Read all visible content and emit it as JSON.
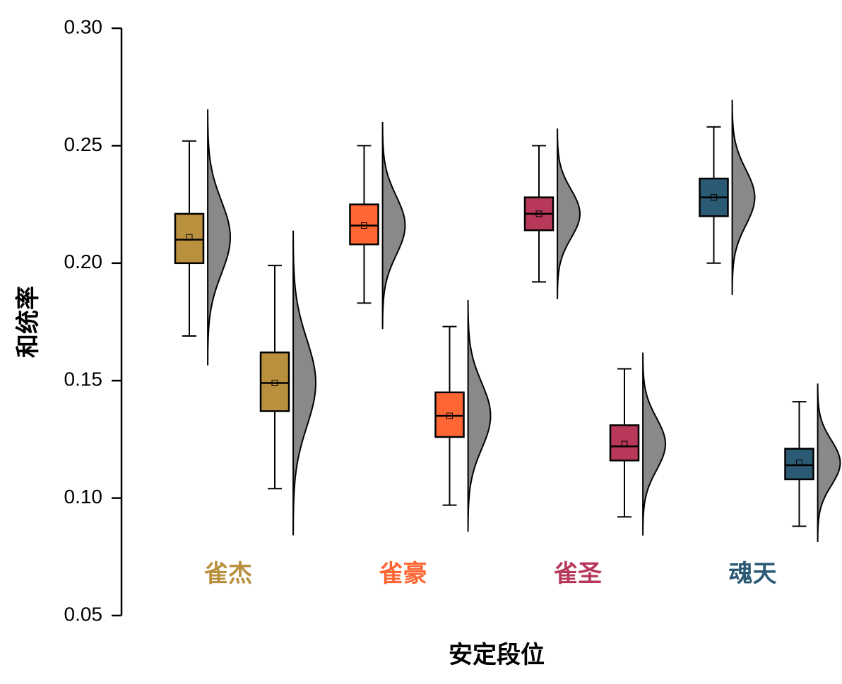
{
  "chart_data": {
    "type": "box",
    "ylabel": "和统率",
    "xlabel": "安定段位",
    "categories": [
      "雀杰",
      "雀豪",
      "雀圣",
      "魂天"
    ],
    "colors": [
      "#b8903e",
      "#ff6633",
      "#b8385a",
      "#2b5b74"
    ],
    "series": [
      {
        "boxes": [
          {
            "whislo": 0.169,
            "q1": 0.2,
            "med": 0.21,
            "q3": 0.221,
            "whishi": 0.252,
            "mean": 0.211
          },
          {
            "whislo": 0.183,
            "q1": 0.208,
            "med": 0.216,
            "q3": 0.225,
            "whishi": 0.25,
            "mean": 0.216
          },
          {
            "whislo": 0.192,
            "q1": 0.214,
            "med": 0.221,
            "q3": 0.228,
            "whishi": 0.25,
            "mean": 0.221
          },
          {
            "whislo": 0.2,
            "q1": 0.22,
            "med": 0.228,
            "q3": 0.236,
            "whishi": 0.258,
            "mean": 0.228
          }
        ]
      },
      {
        "boxes": [
          {
            "whislo": 0.104,
            "q1": 0.137,
            "med": 0.149,
            "q3": 0.162,
            "whishi": 0.199,
            "mean": 0.149
          },
          {
            "whislo": 0.097,
            "q1": 0.126,
            "med": 0.135,
            "q3": 0.145,
            "whishi": 0.173,
            "mean": 0.135
          },
          {
            "whislo": 0.092,
            "q1": 0.116,
            "med": 0.122,
            "q3": 0.131,
            "whishi": 0.155,
            "mean": 0.123
          },
          {
            "whislo": 0.088,
            "q1": 0.108,
            "med": 0.114,
            "q3": 0.121,
            "whishi": 0.141,
            "mean": 0.115
          }
        ]
      }
    ],
    "ylim": [
      0.05,
      0.3
    ],
    "yticks": [
      {
        "value": 0.05,
        "label": "0.05"
      },
      {
        "value": 0.1,
        "label": "0.10"
      },
      {
        "value": 0.15,
        "label": "0.15"
      },
      {
        "value": 0.2,
        "label": "0.20"
      },
      {
        "value": 0.25,
        "label": "0.25"
      },
      {
        "value": 0.3,
        "label": "0.30"
      }
    ]
  }
}
